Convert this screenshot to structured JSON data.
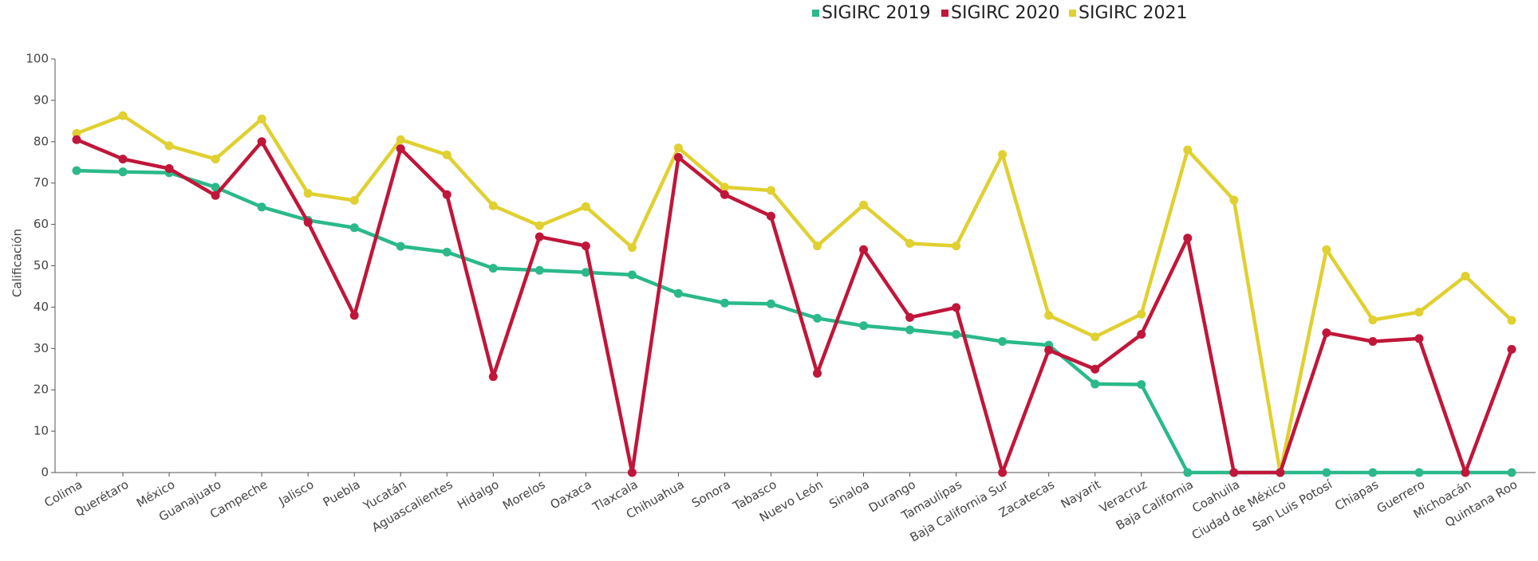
{
  "chart_data": {
    "type": "line",
    "y_label": "Calificación",
    "categories": [
      "Colima",
      "Querétaro",
      "México",
      "Guanajuato",
      "Campeche",
      "Jalisco",
      "Puebla",
      "Yucatán",
      "Aguascalientes",
      "Hidalgo",
      "Morelos",
      "Oaxaca",
      "Tlaxcala",
      "Chihuahua",
      "Sonora",
      "Tabasco",
      "Nuevo León",
      "Sinaloa",
      "Durango",
      "Tamaulipas",
      "Baja California Sur",
      "Zacatecas",
      "Nayarit",
      "Veracruz",
      "Baja California",
      "Coahuila",
      "Ciudad de México",
      "San Luis Potosí",
      "Chiapas",
      "Guerrero",
      "Michoacán",
      "Quintana Roo"
    ],
    "series": [
      {
        "name": "SIGIRC 2019",
        "color": "#2bb98a",
        "values": [
          73,
          72.7,
          72.5,
          69,
          64.2,
          61,
          59.2,
          54.7,
          53.3,
          49.4,
          48.9,
          48.4,
          47.8,
          43.3,
          41,
          40.8,
          37.3,
          35.5,
          34.5,
          33.4,
          31.7,
          30.8,
          21.4,
          21.3,
          0,
          0,
          0,
          0,
          0,
          0,
          0,
          0
        ]
      },
      {
        "name": "SIGIRC 2020",
        "color": "#c0163a",
        "values": [
          80.5,
          75.8,
          73.5,
          67,
          80,
          60.5,
          38,
          78.3,
          67.2,
          23.2,
          57,
          54.8,
          0,
          76.2,
          67.2,
          62,
          24,
          53.9,
          37.5,
          39.9,
          0,
          29.6,
          25,
          33.4,
          56.7,
          0,
          0,
          33.8,
          31.7,
          32.4,
          0,
          29.8
        ]
      },
      {
        "name": "SIGIRC 2021",
        "color": "#e0d030",
        "values": [
          82,
          86.3,
          79,
          75.8,
          85.5,
          67.5,
          65.8,
          80.5,
          76.8,
          64.5,
          59.7,
          64.3,
          54.4,
          78.5,
          69,
          68.2,
          54.8,
          64.7,
          55.4,
          54.8,
          76.9,
          38,
          32.8,
          38.3,
          78,
          65.9,
          0,
          53.9,
          36.9,
          38.8,
          47.5,
          36.8
        ]
      }
    ],
    "ylim": [
      0,
      100
    ],
    "yticks": [
      0,
      10,
      20,
      30,
      40,
      50,
      60,
      70,
      80,
      90,
      100
    ],
    "grid": false
  }
}
